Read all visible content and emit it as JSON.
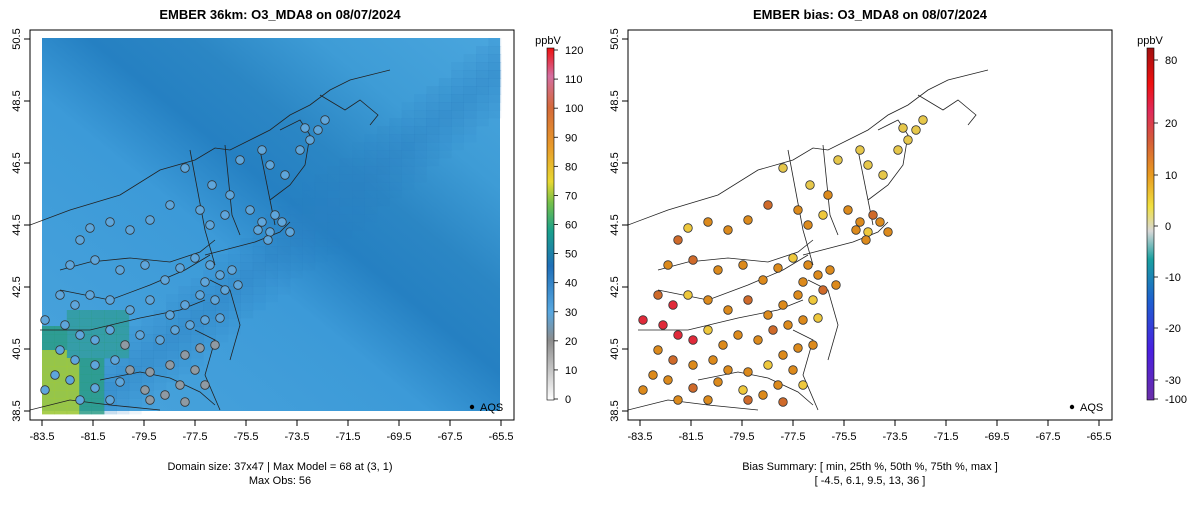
{
  "panels": [
    {
      "title": "EMBER 36km: O3_MDA8 on 08/07/2024",
      "x_ticks": [
        "-83.5",
        "-81.5",
        "-79.5",
        "-77.5",
        "-75.5",
        "-73.5",
        "-71.5",
        "-69.5",
        "-67.5",
        "-65.5"
      ],
      "y_ticks": [
        "38.5",
        "40.5",
        "42.5",
        "44.5",
        "46.5",
        "48.5",
        "50.5"
      ],
      "legend_label": "AQS",
      "colorbar_unit": "ppbV",
      "colorbar_ticks": [
        "0",
        "10",
        "20",
        "30",
        "40",
        "50",
        "60",
        "70",
        "80",
        "90",
        "100",
        "110",
        "120"
      ],
      "footer_line1": "Domain size: 37x47 | Max Model = 68 at (3, 1)",
      "footer_line2": "Max Obs: 56"
    },
    {
      "title": "EMBER bias: O3_MDA8 on 08/07/2024",
      "x_ticks": [
        "-83.5",
        "-81.5",
        "-79.5",
        "-77.5",
        "-75.5",
        "-73.5",
        "-71.5",
        "-69.5",
        "-67.5",
        "-65.5"
      ],
      "y_ticks": [
        "38.5",
        "40.5",
        "42.5",
        "44.5",
        "46.5",
        "48.5",
        "50.5"
      ],
      "legend_label": "AQS",
      "colorbar_unit": "ppbV",
      "colorbar_ticks": [
        "-100",
        "-30",
        "-20",
        "-10",
        "0",
        "10",
        "20",
        "80"
      ],
      "footer_line1": "Bias Summary: [ min, 25th %, 50th %, 75th %, max ]",
      "footer_line2": "[ -4.5,   6.1,   9.5,   13,   36 ]"
    }
  ],
  "colors": {
    "model_field": "#3f9ad6",
    "model_field_dark": "#2b7fc1",
    "model_field_high": "#2a9b86",
    "model_field_peak": "#9ec93a",
    "obs_fill": "#5ea6dc",
    "bias_fill": "#dc8a1c"
  }
}
